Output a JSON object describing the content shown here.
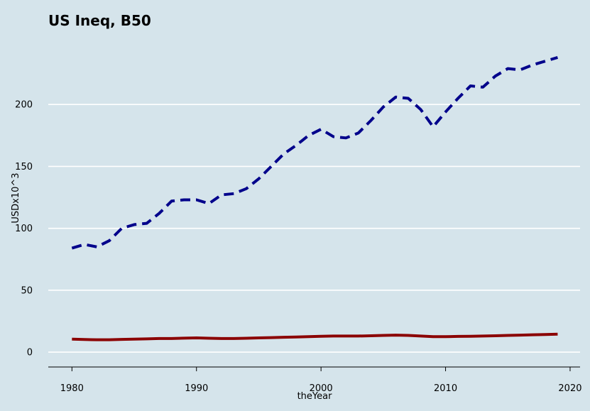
{
  "chart_data": {
    "type": "line",
    "title": "US Ineq, B50",
    "xlabel": "theYear",
    "ylabel": "USDx10^3",
    "xlim": [
      1978.1,
      2020.8
    ],
    "ylim": [
      -12,
      250
    ],
    "x_ticks": [
      1980,
      1990,
      2000,
      2010,
      2020
    ],
    "y_ticks": [
      0,
      50,
      100,
      150,
      200
    ],
    "grid": "horizontal",
    "legend": "none",
    "series": [
      {
        "color": "#00008b",
        "dash": "dashed",
        "x": [
          1980,
          1981,
          1982,
          1983,
          1984,
          1985,
          1986,
          1987,
          1988,
          1989,
          1990,
          1991,
          1992,
          1993,
          1994,
          1995,
          1996,
          1997,
          1998,
          1999,
          2000,
          2001,
          2002,
          2003,
          2004,
          2005,
          2006,
          2007,
          2008,
          2009,
          2010,
          2011,
          2012,
          2013,
          2014,
          2015,
          2016,
          2017,
          2018,
          2019
        ],
        "values": [
          84,
          87,
          85,
          90,
          100,
          103,
          104,
          112,
          122,
          123,
          123,
          120,
          127,
          128,
          132,
          140,
          150,
          160,
          167,
          175,
          180,
          174,
          173,
          177,
          187,
          198,
          206,
          205,
          196,
          182,
          194,
          205,
          215,
          214,
          223,
          229,
          228,
          232,
          235,
          238
        ]
      },
      {
        "color": "#8b0000",
        "dash": "solid",
        "x": [
          1980,
          1981,
          1982,
          1983,
          1984,
          1985,
          1986,
          1987,
          1988,
          1989,
          1990,
          1991,
          1992,
          1993,
          1994,
          1995,
          1996,
          1997,
          1998,
          1999,
          2000,
          2001,
          2002,
          2003,
          2004,
          2005,
          2006,
          2007,
          2008,
          2009,
          2010,
          2011,
          2012,
          2013,
          2014,
          2015,
          2016,
          2017,
          2018,
          2019
        ],
        "values": [
          10.5,
          10.2,
          10.0,
          10.0,
          10.3,
          10.5,
          10.7,
          11.0,
          11.0,
          11.3,
          11.5,
          11.2,
          11.0,
          11.0,
          11.2,
          11.5,
          11.7,
          12.0,
          12.2,
          12.5,
          12.8,
          13.0,
          13.0,
          13.0,
          13.2,
          13.5,
          13.7,
          13.5,
          13.0,
          12.5,
          12.5,
          12.7,
          12.8,
          13.0,
          13.2,
          13.5,
          13.7,
          14.0,
          14.2,
          14.5
        ]
      }
    ]
  }
}
